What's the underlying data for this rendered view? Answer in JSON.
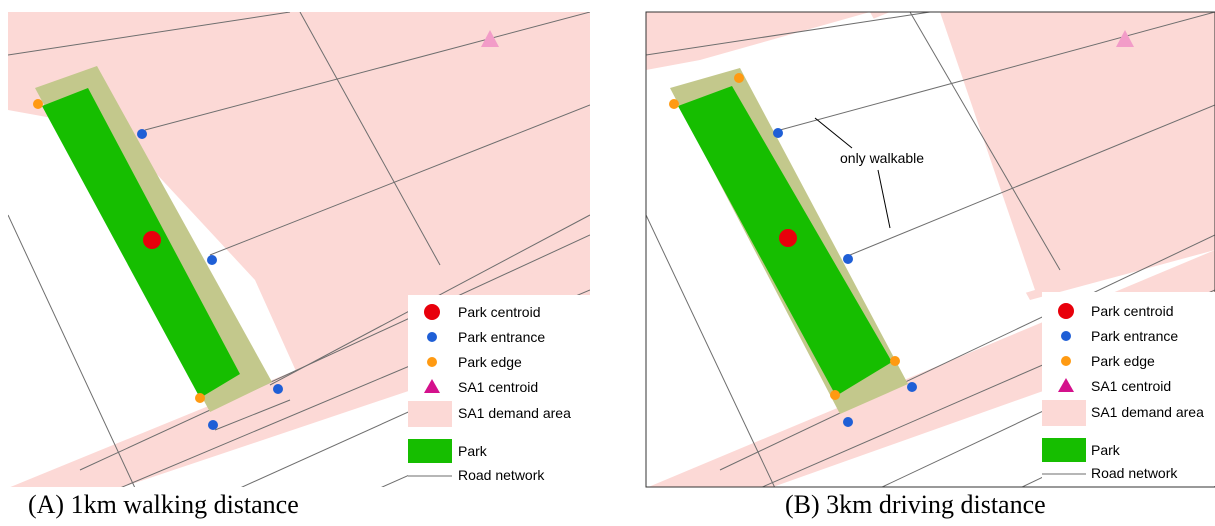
{
  "colors": {
    "park": "#16be00",
    "park_buffer": "#c3c88c",
    "demand_area": "#fcd9d6",
    "road": "#6e6e6e",
    "park_centroid": "#e8000b",
    "park_entrance": "#1f5fd6",
    "park_edge": "#ff9a12",
    "sa1_centroid": "#f29cc8",
    "sa1_centroid_legend": "#d4118c"
  },
  "legend": {
    "park_centroid": "Park centroid",
    "park_entrance": "Park entrance",
    "park_edge": "Park edge",
    "sa1_centroid": "SA1 centroid",
    "sa1_demand_area": "SA1 demand area",
    "park": "Park",
    "road_network": "Road network"
  },
  "panel_a": {
    "caption": "(A) 1km walking distance"
  },
  "panel_b": {
    "caption": "(B) 3km driving distance",
    "annotation": "only walkable"
  }
}
